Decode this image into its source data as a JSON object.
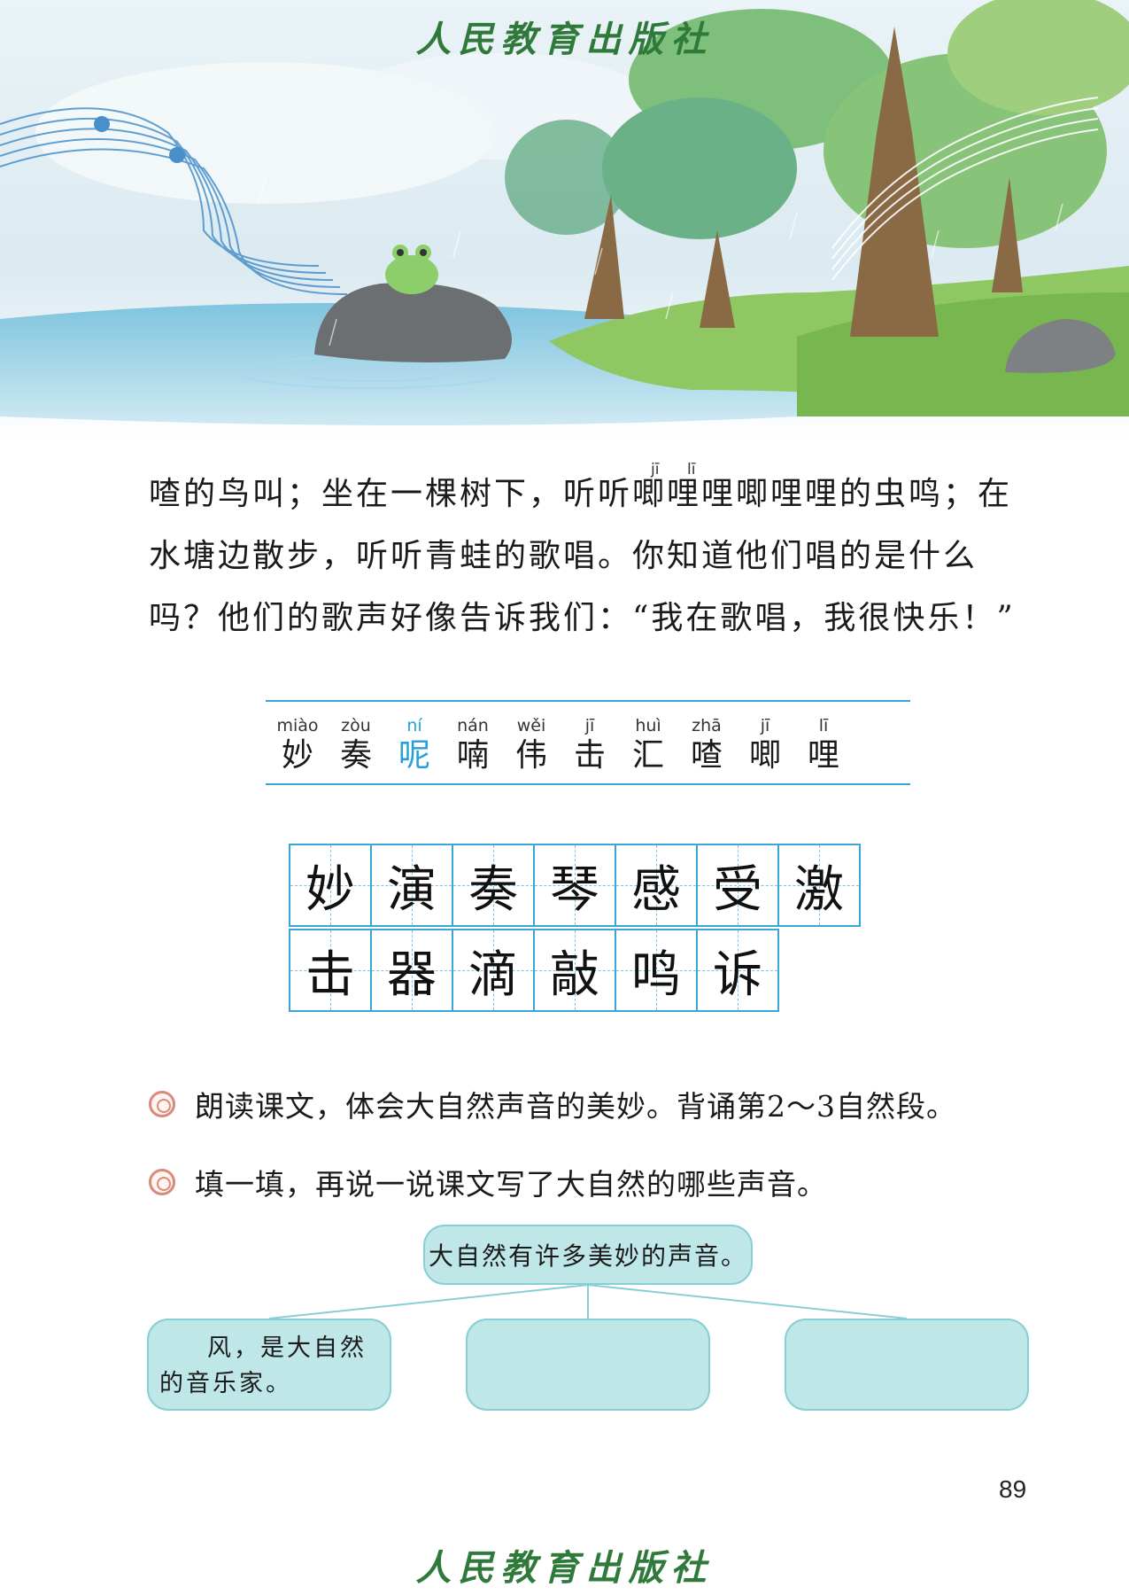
{
  "publisher": "人民教育出版社",
  "passage": {
    "line1": "喳的鸟叫；坐在一棵树下，听听唧哩哩唧哩哩的虫鸣；在",
    "line1_pinyin_ji": "jī",
    "line1_pinyin_li": "lī",
    "line2": "水塘边散步，听听青蛙的歌唱。你知道他们唱的是什么",
    "line3": "吗？他们的歌声好像告诉我们：“我在歌唱，我很快乐！”"
  },
  "vocab": [
    {
      "pinyin": "miào",
      "hanzi": "妙"
    },
    {
      "pinyin": "zòu",
      "hanzi": "奏"
    },
    {
      "pinyin": "ní",
      "hanzi": "呢"
    },
    {
      "pinyin": "nán",
      "hanzi": "喃"
    },
    {
      "pinyin": "wěi",
      "hanzi": "伟"
    },
    {
      "pinyin": "jī",
      "hanzi": "击"
    },
    {
      "pinyin": "huì",
      "hanzi": "汇"
    },
    {
      "pinyin": "zhā",
      "hanzi": "喳"
    },
    {
      "pinyin": "jī",
      "hanzi": "唧"
    },
    {
      "pinyin": "lī",
      "hanzi": "哩"
    }
  ],
  "writing_chars": {
    "row1": [
      "妙",
      "演",
      "奏",
      "琴",
      "感",
      "受",
      "激"
    ],
    "row2": [
      "击",
      "器",
      "滴",
      "敲",
      "鸣",
      "诉"
    ]
  },
  "exercises": {
    "ex1": "朗读课文，体会大自然声音的美妙。背诵第2～3自然段。",
    "ex2": "填一填，再说一说课文写了大自然的哪些声音。"
  },
  "diagram": {
    "center": "大自然有许多美妙的声音。",
    "box_a": "风，是大自然的音乐家。",
    "box_b": "",
    "box_c": ""
  },
  "page_number": "89",
  "colors": {
    "accent_blue": "#3aa7d9",
    "publisher_green": "#2f7a3a",
    "box_fill": "#bfe7e7"
  }
}
